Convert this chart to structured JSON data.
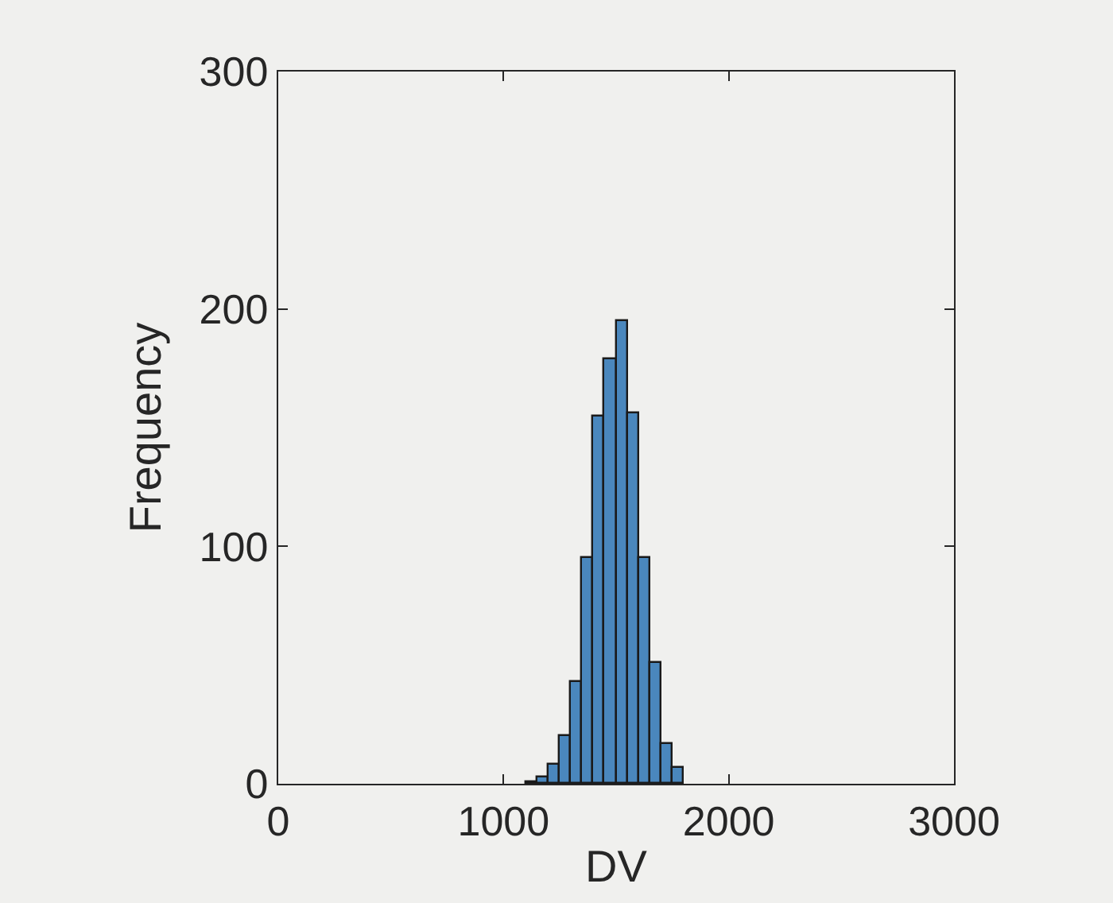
{
  "chart_data": {
    "type": "histogram",
    "xlabel": "DV",
    "ylabel": "Frequency",
    "bins": [
      1100,
      1150,
      1200,
      1250,
      1300,
      1350,
      1400,
      1450,
      1500,
      1550,
      1600,
      1650,
      1700,
      1750,
      1800
    ],
    "values": [
      1,
      3,
      8,
      20,
      43,
      95,
      155,
      179,
      195,
      156,
      95,
      51,
      17,
      7
    ],
    "color": "#4a87bd",
    "xlim": [
      0,
      3000
    ],
    "xticks": [
      0,
      1000,
      2000,
      3000
    ],
    "ylim": [
      0,
      300
    ],
    "yticks": [
      0,
      100,
      200,
      300
    ],
    "grid": false
  }
}
